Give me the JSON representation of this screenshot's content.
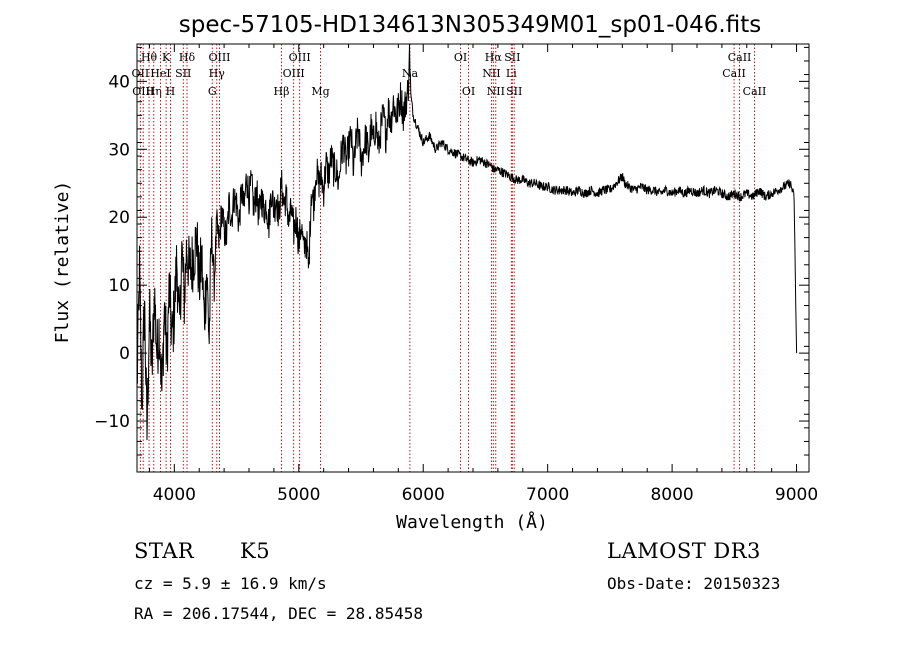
{
  "chart_data": {
    "type": "line",
    "title": "spec-57105-HD134613N305349M01_sp01-046.fits",
    "xlabel": "Wavelength (Å)",
    "ylabel": "Flux (relative)",
    "xlim": [
      3700,
      9100
    ],
    "ylim": [
      -17.5,
      45.5
    ],
    "xticks": [
      4000,
      5000,
      6000,
      7000,
      8000,
      9000
    ],
    "yticks": [
      -10,
      0,
      10,
      20,
      30,
      40
    ],
    "grid": false,
    "series": [
      {
        "x": [
          3700,
          3720,
          3740,
          3760,
          3780,
          3800,
          3820,
          3840,
          3860,
          3880,
          3900,
          3920,
          3940,
          3960,
          3980,
          4000,
          4020,
          4040,
          4060,
          4080,
          4100,
          4120,
          4140,
          4160,
          4180,
          4200,
          4220,
          4240,
          4260,
          4280,
          4300,
          4320,
          4340,
          4360,
          4380,
          4400,
          4420,
          4440,
          4460,
          4480,
          4500,
          4520,
          4540,
          4560,
          4580,
          4600,
          4620,
          4640,
          4660,
          4680,
          4700,
          4720,
          4740,
          4760,
          4780,
          4800,
          4820,
          4840,
          4860,
          4880,
          4900,
          4920,
          4940,
          4960,
          4980,
          5000,
          5020,
          5040,
          5060,
          5080,
          5100,
          5120,
          5140,
          5160,
          5180,
          5200,
          5220,
          5240,
          5260,
          5280,
          5300,
          5320,
          5340,
          5360,
          5380,
          5400,
          5420,
          5440,
          5460,
          5480,
          5500,
          5520,
          5540,
          5560,
          5580,
          5600,
          5620,
          5640,
          5660,
          5680,
          5700,
          5720,
          5740,
          5760,
          5780,
          5800,
          5820,
          5840,
          5860,
          5880,
          5890,
          5900,
          5920,
          5940,
          5960,
          5980,
          6000,
          6050,
          6100,
          6150,
          6200,
          6250,
          6300,
          6350,
          6400,
          6450,
          6500,
          6550,
          6563,
          6600,
          6650,
          6700,
          6750,
          6800,
          6850,
          6900,
          6950,
          7000,
          7050,
          7100,
          7150,
          7200,
          7250,
          7300,
          7350,
          7400,
          7450,
          7500,
          7550,
          7600,
          7620,
          7650,
          7700,
          7750,
          7800,
          7850,
          7900,
          7950,
          8000,
          8050,
          8100,
          8150,
          8200,
          8250,
          8300,
          8350,
          8400,
          8450,
          8500,
          8550,
          8600,
          8650,
          8700,
          8750,
          8800,
          8850,
          8900,
          8950,
          8980,
          9000
        ],
        "y": [
          -5,
          12,
          -8,
          8,
          -12,
          6,
          -3,
          9,
          0,
          4,
          -6,
          7,
          -1,
          10,
          2,
          6,
          14,
          3,
          15,
          8,
          16,
          12,
          13,
          15,
          17,
          10,
          14,
          5,
          12,
          2,
          18,
          10,
          19,
          16,
          21,
          18,
          17,
          22,
          20,
          23,
          22,
          19,
          24,
          21,
          26,
          23,
          25,
          21,
          24,
          20,
          23,
          21,
          22,
          19,
          24,
          21,
          23,
          20,
          25,
          22,
          23,
          19,
          21,
          18,
          20,
          16,
          19,
          15,
          17,
          12,
          24,
          22,
          27,
          25,
          26,
          24,
          28,
          26,
          29,
          27,
          27,
          25,
          29,
          31,
          28,
          30,
          32,
          27,
          31,
          33,
          28,
          30,
          32,
          29,
          33,
          31,
          34,
          30,
          33,
          35,
          32,
          36,
          34,
          37,
          35,
          36,
          38,
          35,
          37,
          39,
          46,
          38,
          35,
          34,
          33,
          32,
          31,
          32,
          30,
          31,
          30,
          29.5,
          29,
          28.5,
          28,
          28.5,
          28,
          27.5,
          27,
          27,
          26.5,
          26,
          25.5,
          25.5,
          25,
          25,
          24.5,
          24.5,
          24,
          24,
          24,
          23.5,
          24,
          23.5,
          24,
          23.5,
          24,
          24,
          25,
          26,
          25,
          24.5,
          24,
          24.5,
          24,
          24,
          23.5,
          24,
          23.5,
          24,
          23.5,
          24,
          23.5,
          24,
          23.5,
          24,
          23.5,
          23,
          23.5,
          23,
          23.5,
          23,
          24,
          23,
          23.5,
          24,
          24.5,
          25,
          23,
          0
        ]
      }
    ],
    "lines": [
      {
        "x": 3727,
        "label": "OII",
        "row": 1
      },
      {
        "x": 3750,
        "label": "OIII",
        "row": 2
      },
      {
        "x": 3797,
        "label": "Hθ",
        "row": 0
      },
      {
        "x": 3835,
        "label": "Hη",
        "row": 2
      },
      {
        "x": 3889,
        "label": "HeI",
        "row": 1
      },
      {
        "x": 3934,
        "label": "K",
        "row": 0
      },
      {
        "x": 3969,
        "label": "H",
        "row": 2
      },
      {
        "x": 4072,
        "label": "SII",
        "row": 1
      },
      {
        "x": 4102,
        "label": "Hδ",
        "row": 0
      },
      {
        "x": 4305,
        "label": "G",
        "row": 2
      },
      {
        "x": 4341,
        "label": "Hγ",
        "row": 1
      },
      {
        "x": 4363,
        "label": "OIII",
        "row": 0
      },
      {
        "x": 4861,
        "label": "Hβ",
        "row": 2
      },
      {
        "x": 4959,
        "label": "OIII",
        "row": 1
      },
      {
        "x": 5007,
        "label": "OIII",
        "row": 0
      },
      {
        "x": 5175,
        "label": "Mg",
        "row": 2
      },
      {
        "x": 5893,
        "label": "Na",
        "row": 1
      },
      {
        "x": 6300,
        "label": "OI",
        "row": 0
      },
      {
        "x": 6364,
        "label": "OI",
        "row": 2
      },
      {
        "x": 6548,
        "label": "NII",
        "row": 1
      },
      {
        "x": 6563,
        "label": "Hα",
        "row": 0
      },
      {
        "x": 6583,
        "label": "NII",
        "row": 2
      },
      {
        "x": 6708,
        "label": "Li",
        "row": 1
      },
      {
        "x": 6716,
        "label": "SII",
        "row": 0
      },
      {
        "x": 6731,
        "label": "SII",
        "row": 2
      },
      {
        "x": 8498,
        "label": "CaII",
        "row": 1
      },
      {
        "x": 8542,
        "label": "CaII",
        "row": 0
      },
      {
        "x": 8662,
        "label": "CaII",
        "row": 2
      }
    ]
  },
  "info": {
    "class": "STAR",
    "subclass": "K5",
    "survey": "LAMOST DR3",
    "cz": "cz = 5.9 ± 16.9 km/s",
    "obs_date": "Obs-Date: 20150323",
    "radec": "RA = 206.17544, DEC =  28.85458"
  }
}
